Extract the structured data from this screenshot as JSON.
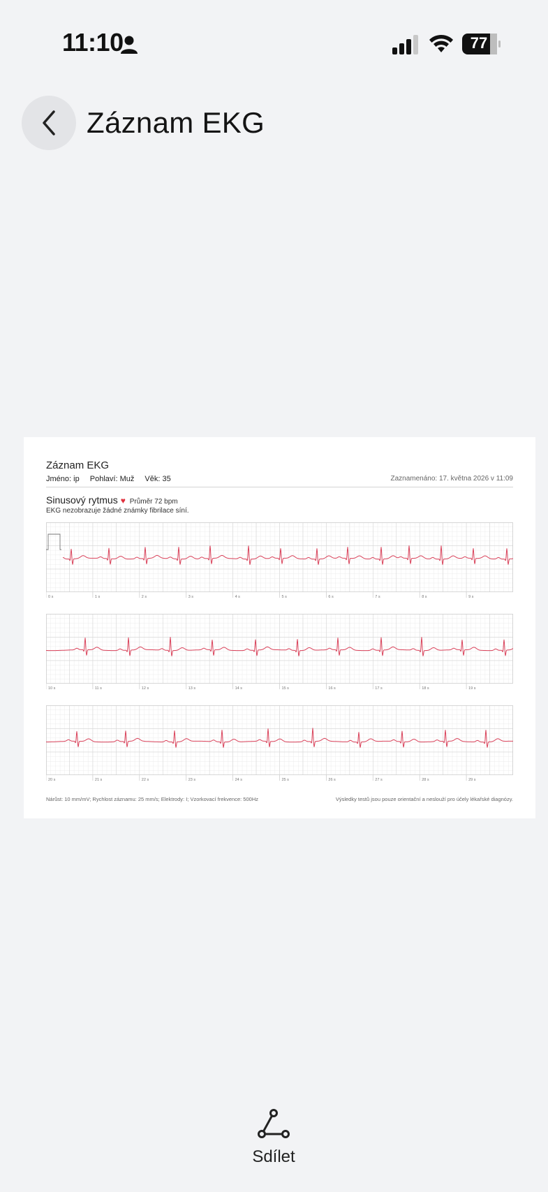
{
  "status_bar": {
    "time": "11:10",
    "battery": "77"
  },
  "header": {
    "title": "Záznam EKG"
  },
  "report": {
    "title": "Záznam EKG",
    "name": "Jméno: ip",
    "gender": "Pohlaví: Muž",
    "age": "Věk: 35",
    "recorded": "Zaznamenáno: 17. května 2026 v 11:09",
    "rhythm": "Sinusový rytmus",
    "average": "Průměr 72 bpm",
    "description": "EKG nezobrazuje žádné známky fibrilace síní.",
    "strips": [
      {
        "ticks": [
          "0 s",
          "1 s",
          "2 s",
          "3 s",
          "4 s",
          "5 s",
          "6 s",
          "7 s",
          "8 s",
          "9 s"
        ]
      },
      {
        "ticks": [
          "10 s",
          "11 s",
          "12 s",
          "13 s",
          "14 s",
          "15 s",
          "16 s",
          "17 s",
          "18 s",
          "19 s"
        ]
      },
      {
        "ticks": [
          "20 s",
          "21 s",
          "22 s",
          "23 s",
          "24 s",
          "25 s",
          "26 s",
          "27 s",
          "28 s",
          "29 s"
        ]
      }
    ],
    "footer_left": "Nárůst: 10 mm/mV;   Rychlost záznamu: 25 mm/s;   Elektrody: I;   Vzorkovací frekvence: 500Hz",
    "footer_right": "Výsledky testů jsou pouze orientační a neslouží pro účely lékařské diagnózy.",
    "colors": {
      "trace": "#d9425a",
      "grid_minor": "#ececec",
      "grid_major": "#d6d6d6"
    }
  },
  "share": {
    "label": "Sdílet"
  }
}
